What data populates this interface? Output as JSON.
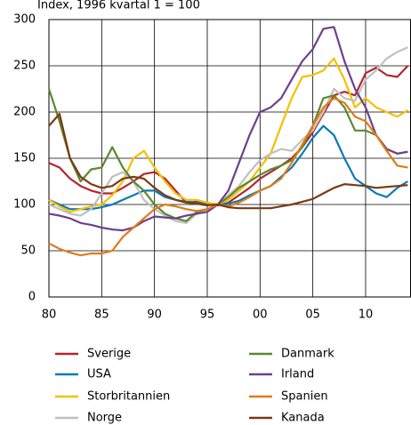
{
  "chart_data": {
    "type": "line",
    "title": "Index, 1996 kvartal 1 = 100",
    "x": [
      1980,
      1981,
      1982,
      1983,
      1984,
      1985,
      1986,
      1987,
      1988,
      1989,
      1990,
      1991,
      1992,
      1993,
      1994,
      1995,
      1996,
      1997,
      1998,
      1999,
      2000,
      2001,
      2002,
      2003,
      2004,
      2005,
      2006,
      2007,
      2008,
      2009,
      2010,
      2011,
      2012,
      2013,
      2014
    ],
    "xlim": [
      1980,
      2014.3
    ],
    "xticks": [
      {
        "value": 1980,
        "label": "80"
      },
      {
        "value": 1985,
        "label": "85"
      },
      {
        "value": 1990,
        "label": "90"
      },
      {
        "value": 1995,
        "label": "95"
      },
      {
        "value": 2000,
        "label": "00"
      },
      {
        "value": 2005,
        "label": "05"
      },
      {
        "value": 2010,
        "label": "10"
      }
    ],
    "ylim": [
      0,
      300
    ],
    "yticks": [
      0,
      50,
      100,
      150,
      200,
      250,
      300
    ],
    "grid": true,
    "series": [
      {
        "name": "Sverige",
        "color": "#b5252f",
        "values": [
          145,
          140,
          128,
          120,
          115,
          112,
          112,
          118,
          125,
          133,
          135,
          128,
          115,
          102,
          103,
          100,
          99,
          102,
          110,
          118,
          128,
          135,
          142,
          150,
          162,
          178,
          198,
          218,
          222,
          218,
          242,
          248,
          240,
          238,
          250
        ]
      },
      {
        "name": "USA",
        "color": "#0a7ab8",
        "values": [
          105,
          100,
          95,
          95,
          95,
          97,
          100,
          105,
          110,
          115,
          115,
          108,
          105,
          103,
          102,
          100,
          100,
          101,
          104,
          110,
          115,
          120,
          130,
          140,
          155,
          172,
          185,
          175,
          150,
          128,
          120,
          112,
          108,
          118,
          125
        ]
      },
      {
        "name": "Storbritannien",
        "color": "#f5c000",
        "values": [
          105,
          98,
          92,
          95,
          98,
          100,
          110,
          125,
          150,
          158,
          140,
          125,
          112,
          105,
          105,
          102,
          100,
          105,
          115,
          125,
          140,
          155,
          185,
          215,
          238,
          240,
          245,
          258,
          235,
          205,
          215,
          205,
          200,
          195,
          202
        ]
      },
      {
        "name": "Norge",
        "color": "#c0c0c0",
        "values": [
          100,
          95,
          90,
          88,
          95,
          112,
          130,
          135,
          125,
          105,
          95,
          88,
          82,
          80,
          90,
          95,
          100,
          110,
          120,
          135,
          148,
          155,
          160,
          158,
          170,
          180,
          200,
          225,
          215,
          212,
          235,
          245,
          258,
          265,
          270
        ]
      },
      {
        "name": "Danmark",
        "color": "#5a8a2e",
        "values": [
          225,
          190,
          150,
          125,
          138,
          140,
          162,
          140,
          125,
          115,
          100,
          90,
          85,
          82,
          92,
          95,
          100,
          108,
          118,
          125,
          132,
          138,
          142,
          148,
          162,
          185,
          215,
          218,
          205,
          180,
          180,
          175,
          160,
          155,
          157
        ]
      },
      {
        "name": "Irland",
        "color": "#6f3f8c",
        "values": [
          90,
          88,
          85,
          80,
          78,
          75,
          73,
          72,
          75,
          82,
          87,
          86,
          85,
          88,
          90,
          92,
          100,
          115,
          145,
          175,
          200,
          205,
          215,
          235,
          255,
          268,
          290,
          292,
          255,
          225,
          205,
          175,
          160,
          155,
          157
        ]
      },
      {
        "name": "Spanien",
        "color": "#e07b17",
        "values": [
          58,
          52,
          48,
          45,
          47,
          47,
          50,
          65,
          75,
          85,
          95,
          100,
          98,
          95,
          93,
          95,
          100,
          98,
          102,
          108,
          115,
          120,
          128,
          145,
          165,
          185,
          205,
          215,
          210,
          195,
          190,
          175,
          158,
          142,
          140
        ]
      },
      {
        "name": "Kanada",
        "color": "#7a3a12",
        "values": [
          185,
          198,
          150,
          130,
          122,
          118,
          120,
          128,
          130,
          128,
          118,
          110,
          105,
          102,
          101,
          99,
          100,
          97,
          96,
          96,
          96,
          96,
          98,
          100,
          103,
          106,
          112,
          118,
          122,
          121,
          120,
          118,
          119,
          120,
          121
        ]
      }
    ]
  }
}
